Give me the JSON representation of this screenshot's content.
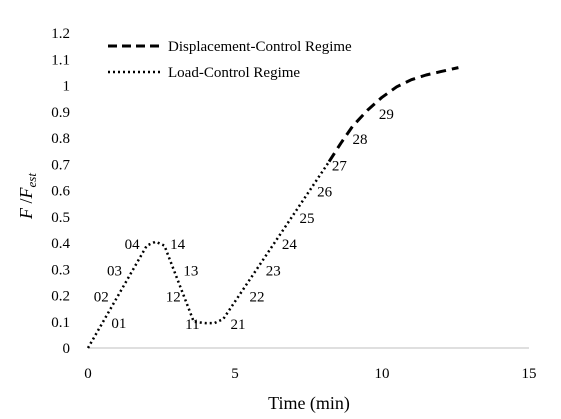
{
  "chart_data": {
    "type": "line",
    "xlabel": "Time (min)",
    "ylabel_main": "F",
    "ylabel_sep": " /",
    "ylabel_den": "F",
    "ylabel_sub": "est",
    "xlim": [
      0,
      15
    ],
    "ylim": [
      0,
      1.2
    ],
    "x_ticks": [
      0,
      5,
      10,
      15
    ],
    "x_tick_labels": [
      "0",
      "5",
      "10",
      "15"
    ],
    "y_ticks": [
      0,
      0.1,
      0.2,
      0.3,
      0.4,
      0.5,
      0.6,
      0.7,
      0.8,
      0.9,
      1,
      1.1,
      1.2
    ],
    "y_tick_labels": [
      "0",
      "0.1",
      "0.2",
      "0.3",
      "0.4",
      "0.5",
      "0.6",
      "0.7",
      "0.8",
      "0.9",
      "1",
      "1.1",
      "1.2"
    ],
    "grid": false,
    "legend_position": "top-left",
    "series": [
      {
        "name": "Displacement-Control Regime",
        "style": "dashed",
        "color": "#000000",
        "x": [
          8.2,
          8.6,
          9.0,
          9.5,
          10.0,
          10.5,
          11.0,
          11.5,
          12.0,
          12.6
        ],
        "y": [
          0.71,
          0.78,
          0.845,
          0.905,
          0.955,
          0.995,
          1.022,
          1.04,
          1.053,
          1.068
        ]
      },
      {
        "name": "Load-Control Regime",
        "style": "dotted",
        "color": "#000000",
        "x": [
          0,
          2.0,
          2.3,
          2.6,
          3.6,
          4.0,
          4.3,
          4.6,
          8.2
        ],
        "y": [
          0,
          0.39,
          0.405,
          0.39,
          0.1,
          0.095,
          0.095,
          0.11,
          0.71
        ]
      }
    ],
    "annotations": [
      {
        "text": "01",
        "x": 1.05,
        "y": 0.1
      },
      {
        "text": "02",
        "x": 0.45,
        "y": 0.2
      },
      {
        "text": "03",
        "x": 0.9,
        "y": 0.3
      },
      {
        "text": "04",
        "x": 1.5,
        "y": 0.4
      },
      {
        "text": "14",
        "x": 3.05,
        "y": 0.4
      },
      {
        "text": "13",
        "x": 3.5,
        "y": 0.3
      },
      {
        "text": "12",
        "x": 2.9,
        "y": 0.2
      },
      {
        "text": "11",
        "x": 3.55,
        "y": 0.095
      },
      {
        "text": "21",
        "x": 5.1,
        "y": 0.095
      },
      {
        "text": "22",
        "x": 5.75,
        "y": 0.2
      },
      {
        "text": "23",
        "x": 6.3,
        "y": 0.3
      },
      {
        "text": "24",
        "x": 6.85,
        "y": 0.4
      },
      {
        "text": "25",
        "x": 7.45,
        "y": 0.5
      },
      {
        "text": "26",
        "x": 8.05,
        "y": 0.6
      },
      {
        "text": "27",
        "x": 8.55,
        "y": 0.7
      },
      {
        "text": "28",
        "x": 9.25,
        "y": 0.8
      },
      {
        "text": "29",
        "x": 10.15,
        "y": 0.895
      }
    ]
  }
}
